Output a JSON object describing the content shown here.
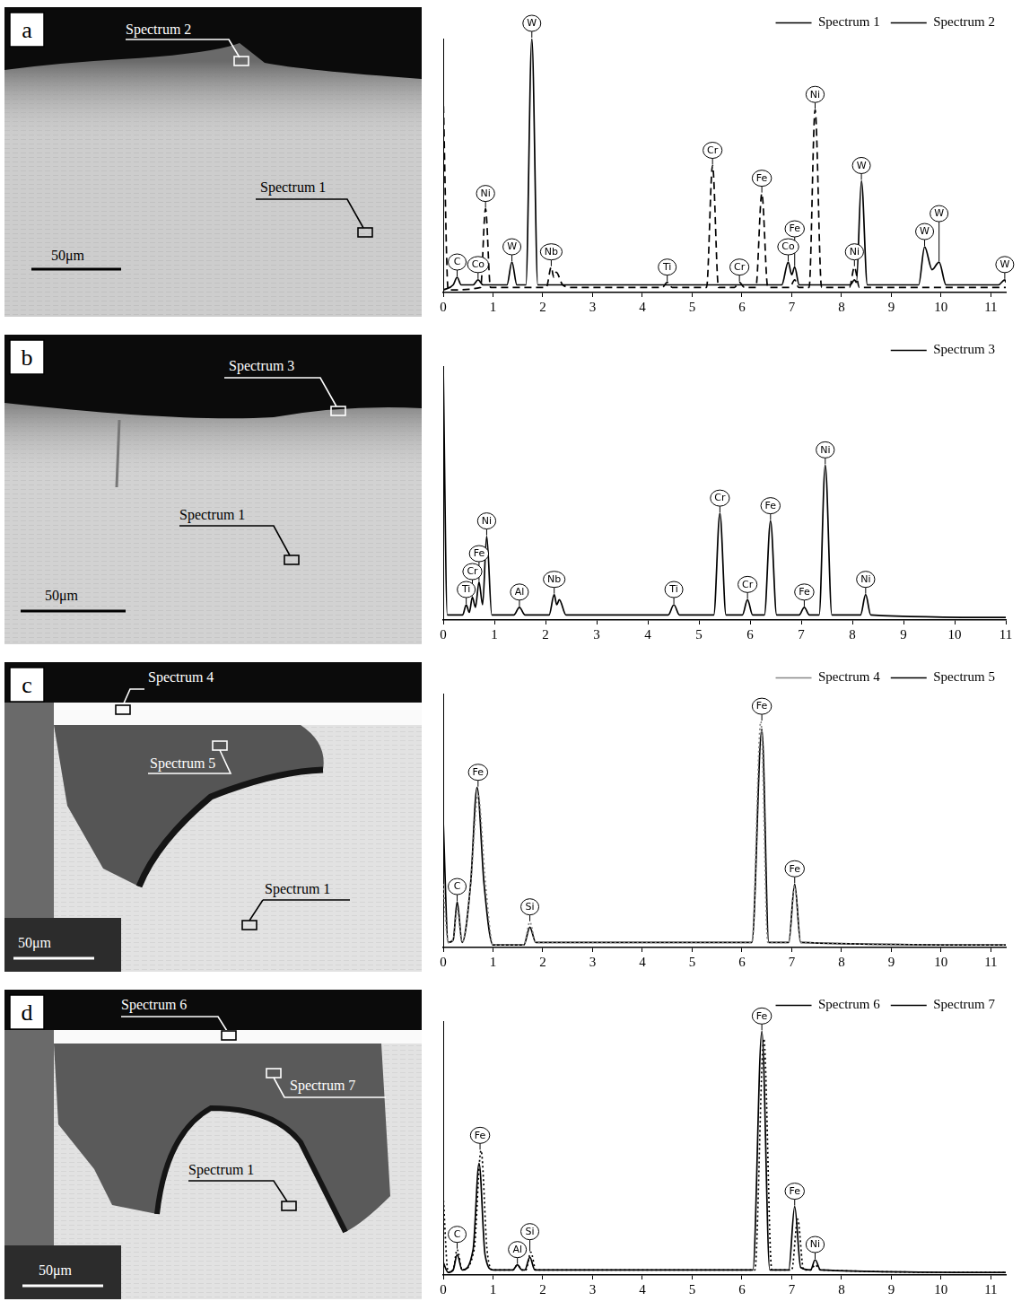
{
  "chart_data": [
    {
      "type": "line",
      "xlim": [
        0,
        11.3
      ],
      "xticks": [
        0,
        1,
        2,
        3,
        4,
        5,
        6,
        7,
        8,
        9,
        10,
        11
      ],
      "ylim": [
        0,
        100
      ],
      "grid": false,
      "tick_labels": "x",
      "legend": "top right",
      "series": [
        {
          "name": "Spectrum 1",
          "color": "#000000",
          "line_style": "solid",
          "x": [
            0,
            0.2,
            0.28,
            0.36,
            0.6,
            0.7,
            0.8,
            1.28,
            1.38,
            1.48,
            1.66,
            1.78,
            1.9,
            6.8,
            6.93,
            7.0,
            7.06,
            7.15,
            8.18,
            8.26,
            8.3,
            8.4,
            8.52,
            9.55,
            9.67,
            9.82,
            9.96,
            10.1,
            11.15,
            11.28,
            11.3
          ],
          "values": [
            1,
            3,
            6,
            3,
            3,
            5,
            3,
            3,
            12,
            3,
            3,
            100,
            3,
            3,
            12,
            7,
            10,
            3,
            3,
            5,
            4,
            44,
            3,
            3,
            18,
            9,
            12,
            3,
            3,
            5,
            4
          ]
        },
        {
          "name": "Spectrum 2",
          "color": "#000000",
          "line_style": "dashed",
          "x": [
            0,
            0.1,
            0.75,
            0.85,
            0.95,
            2.07,
            2.17,
            2.22,
            2.27,
            2.4,
            2.6,
            4.4,
            4.5,
            4.6,
            5.29,
            5.41,
            5.53,
            5.85,
            5.95,
            6.05,
            6.28,
            6.4,
            6.52,
            6.96,
            7.06,
            7.14,
            7.35,
            7.47,
            7.6,
            8.16,
            8.26,
            8.36,
            11.3
          ],
          "values": [
            78,
            1,
            2,
            33,
            2,
            2,
            10,
            6,
            8,
            3,
            2,
            2,
            4,
            2,
            2,
            50,
            2,
            2,
            4,
            2,
            2,
            39,
            2,
            2,
            5,
            2,
            2,
            72,
            2,
            2,
            10,
            2,
            2
          ]
        }
      ],
      "annotations": [
        {
          "text": "C",
          "x": 0.28,
          "y": 6
        },
        {
          "text": "Co",
          "x": 0.7,
          "y": 5
        },
        {
          "text": "Ni",
          "x": 0.85,
          "y": 33
        },
        {
          "text": "W",
          "x": 1.38,
          "y": 12
        },
        {
          "text": "W",
          "x": 1.78,
          "y": 100
        },
        {
          "text": "Nb",
          "x": 2.17,
          "y": 10
        },
        {
          "text": "Ti",
          "x": 4.5,
          "y": 4
        },
        {
          "text": "Cr",
          "x": 5.41,
          "y": 50
        },
        {
          "text": "Cr",
          "x": 5.95,
          "y": 4
        },
        {
          "text": "Fe",
          "x": 6.4,
          "y": 39
        },
        {
          "text": "Co",
          "x": 6.93,
          "y": 12
        },
        {
          "text": "Fe",
          "x": 7.06,
          "y": 10
        },
        {
          "text": "Ni",
          "x": 7.47,
          "y": 72
        },
        {
          "text": "Ni",
          "x": 8.26,
          "y": 10
        },
        {
          "text": "W",
          "x": 8.4,
          "y": 44
        },
        {
          "text": "W",
          "x": 9.67,
          "y": 18
        },
        {
          "text": "W",
          "x": 9.96,
          "y": 12
        },
        {
          "text": "W",
          "x": 11.28,
          "y": 5
        }
      ]
    },
    {
      "type": "line",
      "xlim": [
        0,
        11
      ],
      "xticks": [
        0,
        1,
        2,
        3,
        4,
        5,
        6,
        7,
        8,
        9,
        10,
        11
      ],
      "ylim": [
        0,
        100
      ],
      "grid": false,
      "tick_labels": "x",
      "legend": "top right",
      "series": [
        {
          "name": "Spectrum 3",
          "color": "#000000",
          "line_style": "solid",
          "x": [
            0,
            0.08,
            0.38,
            0.45,
            0.51,
            0.57,
            0.63,
            0.7,
            0.77,
            0.85,
            0.95,
            1.38,
            1.49,
            1.6,
            2.07,
            2.17,
            2.22,
            2.27,
            2.4,
            4.4,
            4.51,
            4.62,
            5.29,
            5.41,
            5.53,
            5.85,
            5.95,
            6.05,
            6.28,
            6.4,
            6.52,
            6.96,
            7.06,
            7.16,
            7.35,
            7.47,
            7.6,
            8.16,
            8.26,
            8.36,
            11
          ],
          "values": [
            100,
            2,
            2,
            6,
            3,
            9,
            5,
            15,
            6,
            33,
            2,
            2,
            5,
            2,
            2,
            10,
            6,
            8,
            2,
            2,
            6,
            2,
            2,
            42,
            2,
            2,
            8,
            2,
            2,
            39,
            2,
            2,
            5,
            2,
            2,
            61,
            2,
            2,
            10,
            2,
            1
          ]
        }
      ],
      "annotations": [
        {
          "text": "Ti",
          "x": 0.45,
          "y": 6
        },
        {
          "text": "Cr",
          "x": 0.57,
          "y": 9
        },
        {
          "text": "Fe",
          "x": 0.7,
          "y": 15
        },
        {
          "text": "Ni",
          "x": 0.85,
          "y": 33
        },
        {
          "text": "Al",
          "x": 1.49,
          "y": 5
        },
        {
          "text": "Nb",
          "x": 2.17,
          "y": 10
        },
        {
          "text": "Ti",
          "x": 4.51,
          "y": 6
        },
        {
          "text": "Cr",
          "x": 5.41,
          "y": 42
        },
        {
          "text": "Cr",
          "x": 5.95,
          "y": 8
        },
        {
          "text": "Fe",
          "x": 6.4,
          "y": 39
        },
        {
          "text": "Fe",
          "x": 7.06,
          "y": 5
        },
        {
          "text": "Ni",
          "x": 7.47,
          "y": 61
        },
        {
          "text": "Ni",
          "x": 8.26,
          "y": 10
        }
      ]
    },
    {
      "type": "line",
      "xlim": [
        0,
        11.3
      ],
      "xticks": [
        0,
        1,
        2,
        3,
        4,
        5,
        6,
        7,
        8,
        9,
        10,
        11
      ],
      "ylim": [
        0,
        100
      ],
      "grid": false,
      "tick_labels": "x",
      "legend": "top right",
      "series": [
        {
          "name": "Spectrum 4",
          "color": "#888888",
          "line_style": "dotted",
          "x": [
            0,
            0.1,
            0.2,
            0.28,
            0.38,
            0.55,
            0.7,
            0.85,
            1.0,
            1.62,
            1.74,
            1.86,
            6.2,
            6.38,
            6.52,
            6.94,
            7.06,
            7.18,
            11.3
          ],
          "values": [
            25,
            2,
            3,
            15,
            2,
            25,
            60,
            25,
            1,
            1,
            10,
            2,
            2,
            89,
            2,
            2,
            24,
            2,
            1
          ]
        },
        {
          "name": "Spectrum 5",
          "color": "#000000",
          "line_style": "solid",
          "x": [
            0,
            0.1,
            0.2,
            0.28,
            0.38,
            0.55,
            0.68,
            0.82,
            1.0,
            1.62,
            1.74,
            1.86,
            6.2,
            6.4,
            6.54,
            6.94,
            7.06,
            7.18,
            11.3
          ],
          "values": [
            50,
            2,
            3,
            18,
            2,
            25,
            63,
            25,
            1,
            1,
            8,
            2,
            2,
            86,
            2,
            2,
            25,
            2,
            1
          ]
        }
      ],
      "annotations": [
        {
          "text": "C",
          "x": 0.28,
          "y": 18
        },
        {
          "text": "Fe",
          "x": 0.7,
          "y": 63
        },
        {
          "text": "Si",
          "x": 1.74,
          "y": 10
        },
        {
          "text": "Fe",
          "x": 6.4,
          "y": 89
        },
        {
          "text": "Fe",
          "x": 7.06,
          "y": 25
        }
      ]
    },
    {
      "type": "line",
      "xlim": [
        0,
        11.3
      ],
      "xticks": [
        0,
        1,
        2,
        3,
        4,
        5,
        6,
        7,
        8,
        9,
        10,
        11
      ],
      "ylim": [
        0,
        100
      ],
      "grid": false,
      "tick_labels": "x",
      "legend": "top right",
      "series": [
        {
          "name": "Spectrum 6",
          "color": "#000000",
          "line_style": "solid",
          "x": [
            0,
            0.1,
            0.2,
            0.28,
            0.38,
            0.6,
            0.72,
            0.84,
            1.0,
            1.4,
            1.49,
            1.58,
            1.64,
            1.74,
            1.84,
            6.22,
            6.4,
            6.56,
            6.94,
            7.06,
            7.18,
            7.38,
            7.47,
            7.58,
            11.3
          ],
          "values": [
            5,
            1,
            2,
            8,
            2,
            10,
            44,
            8,
            2,
            2,
            4,
            2,
            2,
            7,
            2,
            2,
            96,
            2,
            2,
            27,
            3,
            2,
            6,
            2,
            1
          ]
        },
        {
          "name": "Spectrum 7",
          "color": "#000000",
          "line_style": "dotted",
          "x": [
            0,
            0.1,
            0.2,
            0.28,
            0.38,
            0.62,
            0.76,
            0.88,
            1.0,
            1.4,
            1.49,
            1.58,
            1.66,
            1.76,
            1.86,
            6.26,
            6.44,
            6.6,
            7.0,
            7.12,
            7.24,
            7.38,
            7.47,
            7.58,
            11.3
          ],
          "values": [
            31,
            1,
            2,
            10,
            2,
            10,
            49,
            10,
            2,
            2,
            4,
            2,
            2,
            9,
            2,
            2,
            93,
            2,
            2,
            22,
            2,
            2,
            4,
            2,
            1
          ]
        }
      ],
      "annotations": [
        {
          "text": "C",
          "x": 0.28,
          "y": 10
        },
        {
          "text": "Fe",
          "x": 0.74,
          "y": 49
        },
        {
          "text": "Al",
          "x": 1.49,
          "y": 4
        },
        {
          "text": "Si",
          "x": 1.74,
          "y": 9
        },
        {
          "text": "Fe",
          "x": 6.4,
          "y": 96
        },
        {
          "text": "Fe",
          "x": 7.06,
          "y": 27
        },
        {
          "text": "Ni",
          "x": 7.47,
          "y": 6
        }
      ]
    }
  ],
  "micrographs": [
    {
      "panel": "a",
      "labels": [
        "Spectrum 2",
        "Spectrum 1"
      ],
      "scale_bar": "50μm"
    },
    {
      "panel": "b",
      "labels": [
        "Spectrum 3",
        "Spectrum 1"
      ],
      "scale_bar": "50μm"
    },
    {
      "panel": "c",
      "labels": [
        "Spectrum 4",
        "Spectrum 5",
        "Spectrum 1"
      ],
      "scale_bar": "50μm"
    },
    {
      "panel": "d",
      "labels": [
        "Spectrum 6",
        "Spectrum 7",
        "Spectrum 1"
      ],
      "scale_bar": "50μm"
    }
  ]
}
